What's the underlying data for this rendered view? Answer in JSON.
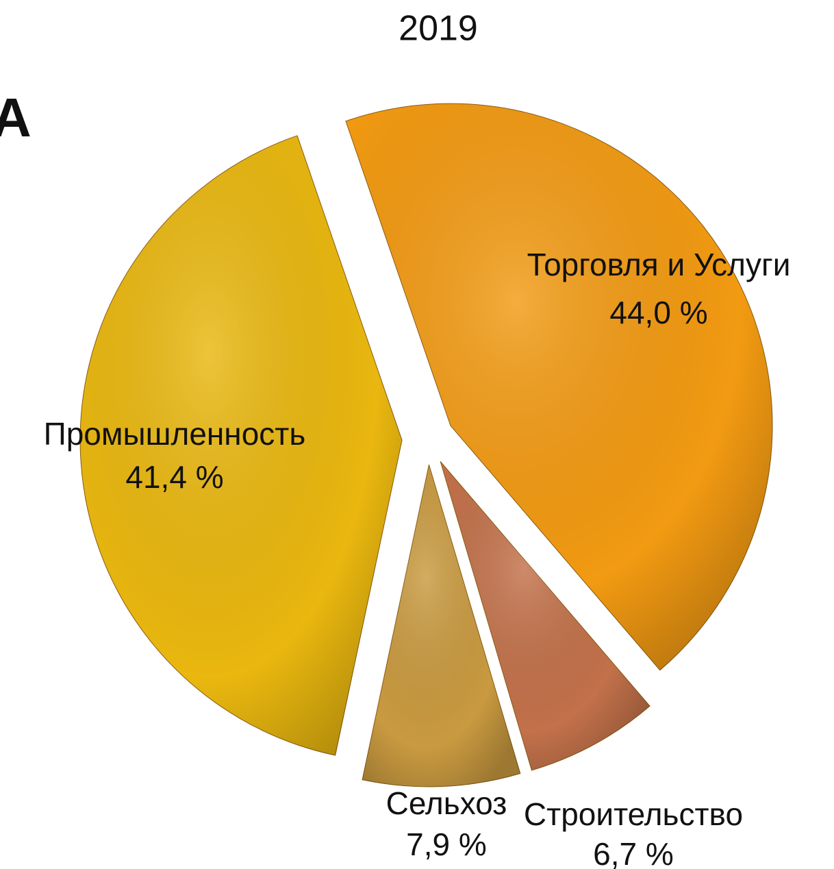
{
  "chart_data": {
    "type": "pie",
    "title": "2019",
    "panel_label": "A",
    "categories": [
      "Торговля и Услуги",
      "Строительство",
      "Сельхоз",
      "Промышленность"
    ],
    "values": [
      44.0,
      6.7,
      7.9,
      41.4
    ],
    "value_labels": [
      "44,0 %",
      "6,7 %",
      "7,9 %",
      "41,4 %"
    ],
    "colors": [
      "#f29a12",
      "#c2714a",
      "#c99a40",
      "#e9b70f"
    ]
  }
}
